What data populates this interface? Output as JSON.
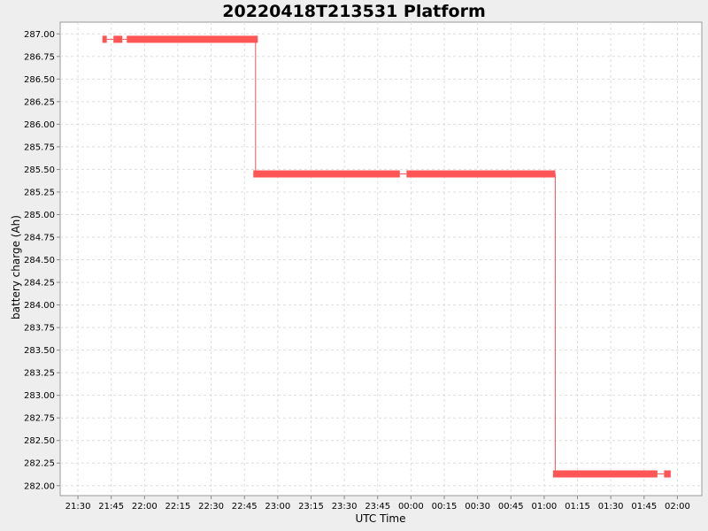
{
  "chart_data": {
    "type": "line",
    "title": "20220418T213531 Platform",
    "xlabel": "UTC Time",
    "ylabel": "battery charge (Ah)",
    "grid": true,
    "legend": "none",
    "xlim": [
      "21:22",
      "02:11"
    ],
    "ylim": [
      281.89,
      287.13
    ],
    "x_ticks": [
      "21:30",
      "21:45",
      "22:00",
      "22:15",
      "22:30",
      "22:45",
      "23:00",
      "23:15",
      "23:30",
      "23:45",
      "00:00",
      "00:15",
      "00:30",
      "00:45",
      "01:00",
      "01:15",
      "01:30",
      "01:45",
      "02:00"
    ],
    "y_ticks": [
      "282.00",
      "282.25",
      "282.50",
      "282.75",
      "283.00",
      "283.25",
      "283.50",
      "283.75",
      "284.00",
      "284.25",
      "284.50",
      "284.75",
      "285.00",
      "285.25",
      "285.50",
      "285.75",
      "286.00",
      "286.25",
      "286.50",
      "286.75",
      "287.00"
    ],
    "series": [
      {
        "color": "#ff5555",
        "segments": [
          {
            "x0": "21:41",
            "x1": "21:43",
            "y": 286.94
          },
          {
            "x0": "21:46",
            "x1": "21:50",
            "y": 286.94
          },
          {
            "x0": "21:52",
            "x1": "22:51",
            "y": 286.94
          },
          {
            "x0": "22:49",
            "x1": "23:55",
            "y": 285.45
          },
          {
            "x0": "23:58",
            "x1": "01:05",
            "y": 285.45
          },
          {
            "x0": "01:04",
            "x1": "01:51",
            "y": 282.13
          },
          {
            "x0": "01:54",
            "x1": "01:57",
            "y": 282.13
          }
        ],
        "thin_connectors": [
          {
            "x0": "21:43",
            "x1": "21:46",
            "y": 286.94
          },
          {
            "x0": "21:50",
            "x1": "21:52",
            "y": 286.94
          },
          {
            "x0": "23:55",
            "x1": "23:58",
            "y": 285.45
          },
          {
            "x0": "01:51",
            "x1": "01:54",
            "y": 282.13
          }
        ],
        "steps": [
          {
            "x": "22:50",
            "y0": 286.94,
            "y1": 285.45
          },
          {
            "x": "01:05",
            "y0": 285.45,
            "y1": 282.13
          }
        ]
      }
    ]
  }
}
